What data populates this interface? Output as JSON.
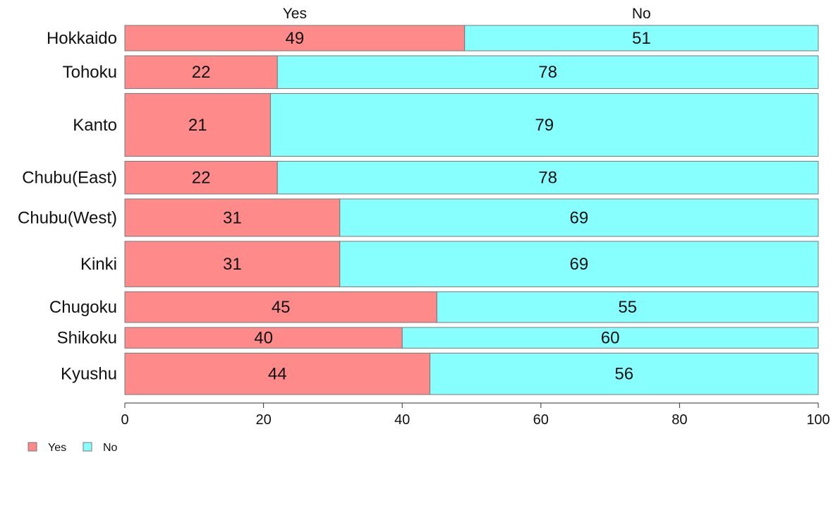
{
  "chart_data": {
    "type": "bar",
    "orientation": "horizontal",
    "stacked": true,
    "variable_width": true,
    "categories": [
      "Hokkaido",
      "Tohoku",
      "Kanto",
      "Chubu(East)",
      "Chubu(West)",
      "Kinki",
      "Chugoku",
      "Shikoku",
      "Kyushu"
    ],
    "series": [
      {
        "name": "Yes",
        "color": "#ff8a8a",
        "values": [
          49,
          22,
          21,
          22,
          31,
          31,
          45,
          40,
          44
        ]
      },
      {
        "name": "No",
        "color": "#88ffff",
        "values": [
          51,
          78,
          79,
          78,
          69,
          69,
          55,
          60,
          56
        ]
      }
    ],
    "data_labels": {
      "Yes": [
        "49",
        "22",
        "21",
        "22",
        "31",
        "31",
        "45",
        "40",
        "44"
      ],
      "No": [
        "51",
        "78",
        "79",
        "78",
        "69",
        "69",
        "55",
        "60",
        "56"
      ]
    },
    "column_headers": [
      "Yes",
      "No"
    ],
    "xlim": [
      0,
      100
    ],
    "x_ticks": [
      0,
      20,
      40,
      60,
      80,
      100
    ],
    "x_tick_labels": [
      "0",
      "20",
      "40",
      "60",
      "80",
      "100"
    ],
    "relative_bar_sizes": [
      0.038,
      0.049,
      0.094,
      0.049,
      0.056,
      0.068,
      0.046,
      0.031,
      0.062
    ],
    "title": "",
    "xlabel": "",
    "ylabel": "",
    "grid": false,
    "legend": {
      "position": "bottom-left",
      "entries": [
        "Yes",
        "No"
      ]
    }
  }
}
